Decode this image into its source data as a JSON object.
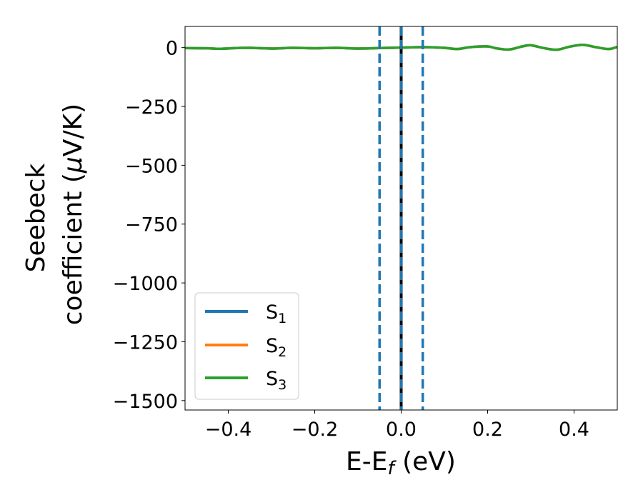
{
  "chart_data": {
    "type": "line",
    "xlabel": {
      "main": "E-E",
      "sub": "f",
      "unit": " (eV)"
    },
    "ylabel": {
      "line1": "Seebeck",
      "line2_pre": "coefficient  (",
      "mu": "μ",
      "line2_post": "V/K)"
    },
    "xlim": [
      -0.5,
      0.5
    ],
    "ylim": [
      -1540,
      90
    ],
    "xticks": [
      -0.4,
      -0.2,
      0.0,
      0.2,
      0.4
    ],
    "xtick_labels": [
      "−0.4",
      "−0.2",
      "0.0",
      "0.2",
      "0.4"
    ],
    "yticks": [
      0,
      -250,
      -500,
      -750,
      -1000,
      -1250,
      -1500
    ],
    "ytick_labels": [
      "0",
      "−250",
      "−500",
      "−750",
      "−1000",
      "−1250",
      "−1500"
    ],
    "grid": false,
    "legend_position": "lower-left",
    "vlines": [
      {
        "x": -0.05,
        "style": "dashed",
        "color": "#1f77b4"
      },
      {
        "x": 0.05,
        "style": "dashed",
        "color": "#1f77b4"
      },
      {
        "x": 0.0,
        "style": "solid",
        "color": "#000000"
      },
      {
        "x": 0.0,
        "style": "dashed",
        "color": "#1f77b4"
      }
    ],
    "series": [
      {
        "name": "S",
        "sub": "1",
        "color": "#1f77b4",
        "x": [
          -0.5,
          -0.45,
          -0.42,
          -0.38,
          -0.35,
          -0.3,
          -0.25,
          -0.2,
          -0.15,
          -0.1,
          -0.05,
          0.0,
          0.05,
          0.1,
          0.13,
          0.16,
          0.2,
          0.22,
          0.25,
          0.28,
          0.3,
          0.33,
          0.36,
          0.39,
          0.42,
          0.45,
          0.48,
          0.5
        ],
        "y": [
          -2,
          -3,
          -5,
          -2,
          -1,
          -4,
          -1,
          -3,
          -1,
          -4,
          -2,
          0,
          2,
          -1,
          -6,
          2,
          5,
          -3,
          -8,
          5,
          10,
          -2,
          -9,
          4,
          12,
          2,
          -6,
          3
        ]
      },
      {
        "name": "S",
        "sub": "2",
        "color": "#ff7f0e",
        "x": [
          -0.5,
          -0.45,
          -0.42,
          -0.38,
          -0.35,
          -0.3,
          -0.25,
          -0.2,
          -0.15,
          -0.1,
          -0.05,
          0.0,
          0.05,
          0.1,
          0.13,
          0.16,
          0.2,
          0.22,
          0.25,
          0.28,
          0.3,
          0.33,
          0.36,
          0.39,
          0.42,
          0.45,
          0.48,
          0.5
        ],
        "y": [
          -2,
          -3,
          -5,
          -2,
          -1,
          -4,
          -1,
          -3,
          -1,
          -4,
          -2,
          0,
          2,
          -1,
          -6,
          2,
          5,
          -3,
          -8,
          5,
          10,
          -2,
          -9,
          4,
          12,
          2,
          -6,
          3
        ]
      },
      {
        "name": "S",
        "sub": "3",
        "color": "#2ca02c",
        "x": [
          -0.5,
          -0.45,
          -0.42,
          -0.38,
          -0.35,
          -0.3,
          -0.25,
          -0.2,
          -0.15,
          -0.1,
          -0.05,
          0.0,
          0.05,
          0.1,
          0.13,
          0.16,
          0.2,
          0.22,
          0.25,
          0.28,
          0.3,
          0.33,
          0.36,
          0.39,
          0.42,
          0.45,
          0.48,
          0.5
        ],
        "y": [
          -2,
          -3,
          -5,
          -2,
          -1,
          -4,
          -1,
          -3,
          -1,
          -4,
          -2,
          0,
          2,
          -1,
          -6,
          2,
          5,
          -3,
          -8,
          5,
          10,
          -2,
          -9,
          4,
          12,
          2,
          -6,
          3
        ]
      }
    ]
  }
}
